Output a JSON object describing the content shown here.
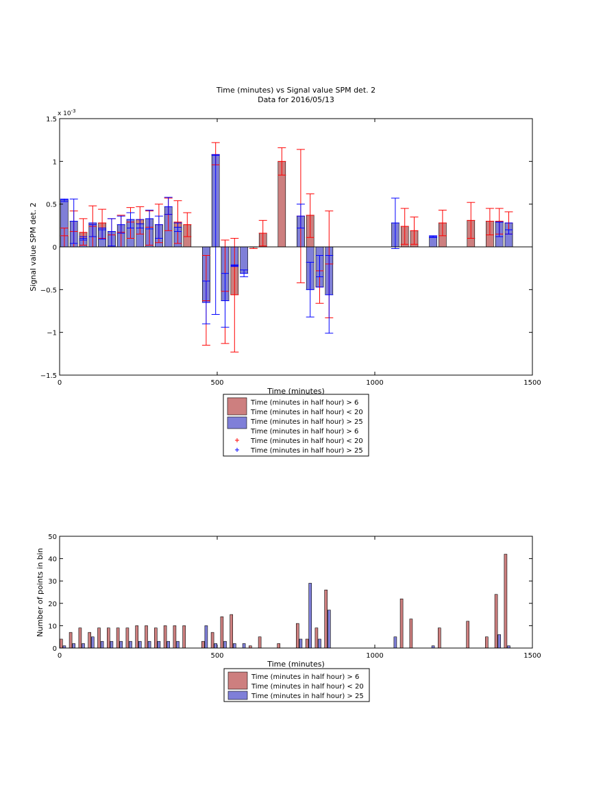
{
  "chart_data": [
    {
      "type": "bar",
      "title": "Time (minutes) vs Signal value SPM det. 2",
      "subtitle": "Data for 2016/05/13",
      "xlabel": "Time (minutes)",
      "ylabel": "Signal value SPM det. 2",
      "exponent_label": "x 10",
      "exponent_power": "-3",
      "xlim": [
        0,
        1500
      ],
      "ylim": [
        -1.5,
        1.5
      ],
      "x_ticks": [
        0,
        500,
        1000,
        1500
      ],
      "y_ticks": [
        -1.5,
        -1,
        -0.5,
        0,
        0.5,
        1,
        1.5
      ],
      "y_tick_labels": [
        "−1.5",
        "−1",
        "−0.5",
        "0",
        "0.5",
        "1",
        "1.5"
      ],
      "grid": false,
      "legend_placement": "bottom-center-outside",
      "legend": [
        {
          "kind": "patch",
          "color": "#cd7f7f",
          "label": "Time (minutes in half hour) > 6"
        },
        {
          "kind": "patch",
          "color": "#cd7f7f",
          "label": "Time (minutes in half hour) < 20"
        },
        {
          "kind": "patch",
          "color": "#7f7fd8",
          "label": "Time (minutes in half hour) > 25"
        },
        {
          "kind": "none",
          "color": "#ff0000",
          "label": "Time (minutes in half hour) > 6"
        },
        {
          "kind": "plus",
          "color": "#ff0000",
          "label": "Time (minutes in half hour) < 20"
        },
        {
          "kind": "plus",
          "color": "#0000ff",
          "label": "Time (minutes in half hour) > 25"
        }
      ],
      "series": [
        {
          "color": "#cd7f7f",
          "error_color": "#ff0000",
          "points": [
            {
              "x": 15,
              "y": 0.13,
              "lo": 0.0,
              "hi": 0.22
            },
            {
              "x": 45,
              "y": 0.18,
              "lo": 0.0,
              "hi": 0.42
            },
            {
              "x": 75,
              "y": 0.17,
              "lo": 0.02,
              "hi": 0.33
            },
            {
              "x": 105,
              "y": 0.24,
              "lo": 0.0,
              "hi": 0.48
            },
            {
              "x": 135,
              "y": 0.28,
              "lo": 0.1,
              "hi": 0.44
            },
            {
              "x": 165,
              "y": 0.14,
              "lo": 0.0,
              "hi": 0.33
            },
            {
              "x": 195,
              "y": 0.17,
              "lo": 0.0,
              "hi": 0.37
            },
            {
              "x": 225,
              "y": 0.29,
              "lo": 0.1,
              "hi": 0.46
            },
            {
              "x": 255,
              "y": 0.32,
              "lo": 0.15,
              "hi": 0.47
            },
            {
              "x": 285,
              "y": 0.23,
              "lo": 0.02,
              "hi": 0.42
            },
            {
              "x": 315,
              "y": 0.26,
              "lo": 0.05,
              "hi": 0.5
            },
            {
              "x": 345,
              "y": 0.38,
              "lo": 0.19,
              "hi": 0.57
            },
            {
              "x": 375,
              "y": 0.29,
              "lo": 0.04,
              "hi": 0.54
            },
            {
              "x": 405,
              "y": 0.26,
              "lo": 0.12,
              "hi": 0.4
            },
            {
              "x": 465,
              "y": -0.63,
              "lo": -1.15,
              "hi": -0.1
            },
            {
              "x": 495,
              "y": 1.08,
              "lo": 0.96,
              "hi": 1.22
            },
            {
              "x": 525,
              "y": -0.52,
              "lo": -1.13,
              "hi": 0.08
            },
            {
              "x": 555,
              "y": -0.56,
              "lo": -1.23,
              "hi": 0.1
            },
            {
              "x": 615,
              "y": 0.0,
              "lo": -0.02,
              "hi": 0.0
            },
            {
              "x": 645,
              "y": 0.16,
              "lo": 0.01,
              "hi": 0.31
            },
            {
              "x": 705,
              "y": 1.0,
              "lo": 0.84,
              "hi": 1.16
            },
            {
              "x": 765,
              "y": 0.36,
              "lo": -0.42,
              "hi": 1.14
            },
            {
              "x": 795,
              "y": 0.37,
              "lo": 0.11,
              "hi": 0.62
            },
            {
              "x": 825,
              "y": -0.47,
              "lo": -0.66,
              "hi": -0.28
            },
            {
              "x": 855,
              "y": -0.2,
              "lo": -0.83,
              "hi": 0.42
            },
            {
              "x": 1095,
              "y": 0.24,
              "lo": 0.03,
              "hi": 0.45
            },
            {
              "x": 1125,
              "y": 0.19,
              "lo": 0.03,
              "hi": 0.35
            },
            {
              "x": 1215,
              "y": 0.28,
              "lo": 0.13,
              "hi": 0.43
            },
            {
              "x": 1305,
              "y": 0.31,
              "lo": 0.1,
              "hi": 0.52
            },
            {
              "x": 1365,
              "y": 0.3,
              "lo": 0.14,
              "hi": 0.45
            },
            {
              "x": 1395,
              "y": 0.3,
              "lo": 0.15,
              "hi": 0.45
            },
            {
              "x": 1425,
              "y": 0.28,
              "lo": 0.15,
              "hi": 0.41
            }
          ]
        },
        {
          "color": "#7f7fd8",
          "error_color": "#0000ff",
          "points": [
            {
              "x": 15,
              "y": 0.55,
              "lo": 0.53,
              "hi": 0.56
            },
            {
              "x": 45,
              "y": 0.3,
              "lo": 0.04,
              "hi": 0.56
            },
            {
              "x": 75,
              "y": 0.1,
              "lo": 0.08,
              "hi": 0.12
            },
            {
              "x": 105,
              "y": 0.28,
              "lo": 0.12,
              "hi": 0.26
            },
            {
              "x": 135,
              "y": 0.22,
              "lo": 0.09,
              "hi": 0.2
            },
            {
              "x": 165,
              "y": 0.18,
              "lo": 0.01,
              "hi": 0.33
            },
            {
              "x": 195,
              "y": 0.26,
              "lo": 0.16,
              "hi": 0.36
            },
            {
              "x": 225,
              "y": 0.32,
              "lo": 0.22,
              "hi": 0.4
            },
            {
              "x": 255,
              "y": 0.27,
              "lo": 0.22,
              "hi": 0.32
            },
            {
              "x": 285,
              "y": 0.33,
              "lo": 0.21,
              "hi": 0.43
            },
            {
              "x": 315,
              "y": 0.26,
              "lo": 0.1,
              "hi": 0.36
            },
            {
              "x": 345,
              "y": 0.47,
              "lo": 0.38,
              "hi": 0.58
            },
            {
              "x": 375,
              "y": 0.23,
              "lo": 0.18,
              "hi": 0.28
            },
            {
              "x": 465,
              "y": -0.65,
              "lo": -0.9,
              "hi": -0.4
            },
            {
              "x": 495,
              "y": 1.08,
              "lo": -0.79,
              "hi": 1.07
            },
            {
              "x": 525,
              "y": -0.63,
              "lo": -0.94,
              "hi": -0.31
            },
            {
              "x": 555,
              "y": -0.22,
              "lo": -0.23,
              "hi": -0.21
            },
            {
              "x": 585,
              "y": -0.31,
              "lo": -0.35,
              "hi": -0.27
            },
            {
              "x": 765,
              "y": 0.36,
              "lo": 0.22,
              "hi": 0.5
            },
            {
              "x": 795,
              "y": -0.5,
              "lo": -0.82,
              "hi": -0.18
            },
            {
              "x": 825,
              "y": -0.47,
              "lo": -0.35,
              "hi": -0.1
            },
            {
              "x": 855,
              "y": -0.56,
              "lo": -1.01,
              "hi": -0.1
            },
            {
              "x": 1065,
              "y": 0.28,
              "lo": -0.02,
              "hi": 0.57
            },
            {
              "x": 1185,
              "y": 0.12,
              "lo": 0.11,
              "hi": 0.13
            },
            {
              "x": 1395,
              "y": 0.29,
              "lo": 0.12,
              "hi": 0.29
            },
            {
              "x": 1425,
              "y": 0.28,
              "lo": 0.15,
              "hi": 0.2
            }
          ]
        }
      ]
    },
    {
      "type": "bar",
      "xlabel": "Time (minutes)",
      "ylabel": "Number of points in bin",
      "xlim": [
        0,
        1500
      ],
      "ylim": [
        0,
        50
      ],
      "x_ticks": [
        0,
        500,
        1000,
        1500
      ],
      "y_ticks": [
        0,
        10,
        20,
        30,
        40,
        50
      ],
      "grid": false,
      "legend_placement": "bottom-center-outside",
      "legend": [
        {
          "kind": "patch",
          "color": "#cd7f7f",
          "label": "Time (minutes in half hour) > 6"
        },
        {
          "kind": "patch",
          "color": "#cd7f7f",
          "label": "Time (minutes in half hour) < 20"
        },
        {
          "kind": "patch",
          "color": "#7f7fd8",
          "label": "Time (minutes in half hour) > 25"
        }
      ],
      "series": [
        {
          "color": "#cd7f7f",
          "points": [
            {
              "x": 5,
              "y": 4
            },
            {
              "x": 35,
              "y": 7
            },
            {
              "x": 65,
              "y": 9
            },
            {
              "x": 95,
              "y": 7
            },
            {
              "x": 125,
              "y": 9
            },
            {
              "x": 155,
              "y": 9
            },
            {
              "x": 185,
              "y": 9
            },
            {
              "x": 215,
              "y": 9
            },
            {
              "x": 245,
              "y": 10
            },
            {
              "x": 275,
              "y": 10
            },
            {
              "x": 305,
              "y": 9
            },
            {
              "x": 335,
              "y": 10
            },
            {
              "x": 365,
              "y": 10
            },
            {
              "x": 395,
              "y": 10
            },
            {
              "x": 455,
              "y": 3
            },
            {
              "x": 485,
              "y": 7
            },
            {
              "x": 515,
              "y": 14
            },
            {
              "x": 545,
              "y": 15
            },
            {
              "x": 605,
              "y": 1
            },
            {
              "x": 635,
              "y": 5
            },
            {
              "x": 695,
              "y": 2
            },
            {
              "x": 755,
              "y": 11
            },
            {
              "x": 785,
              "y": 4
            },
            {
              "x": 815,
              "y": 9
            },
            {
              "x": 845,
              "y": 26
            },
            {
              "x": 1085,
              "y": 22
            },
            {
              "x": 1115,
              "y": 13
            },
            {
              "x": 1205,
              "y": 9
            },
            {
              "x": 1295,
              "y": 12
            },
            {
              "x": 1355,
              "y": 5
            },
            {
              "x": 1385,
              "y": 24
            },
            {
              "x": 1415,
              "y": 42
            }
          ]
        },
        {
          "color": "#7f7fd8",
          "points": [
            {
              "x": 15,
              "y": 1
            },
            {
              "x": 45,
              "y": 2
            },
            {
              "x": 75,
              "y": 2
            },
            {
              "x": 105,
              "y": 5
            },
            {
              "x": 135,
              "y": 3
            },
            {
              "x": 165,
              "y": 3
            },
            {
              "x": 195,
              "y": 3
            },
            {
              "x": 225,
              "y": 3
            },
            {
              "x": 255,
              "y": 3
            },
            {
              "x": 285,
              "y": 3
            },
            {
              "x": 315,
              "y": 3
            },
            {
              "x": 345,
              "y": 3
            },
            {
              "x": 375,
              "y": 3
            },
            {
              "x": 465,
              "y": 10
            },
            {
              "x": 495,
              "y": 2
            },
            {
              "x": 525,
              "y": 3
            },
            {
              "x": 555,
              "y": 2
            },
            {
              "x": 585,
              "y": 2
            },
            {
              "x": 765,
              "y": 4
            },
            {
              "x": 795,
              "y": 29
            },
            {
              "x": 825,
              "y": 4
            },
            {
              "x": 855,
              "y": 17
            },
            {
              "x": 1065,
              "y": 5
            },
            {
              "x": 1185,
              "y": 1
            },
            {
              "x": 1395,
              "y": 6
            },
            {
              "x": 1425,
              "y": 1
            }
          ]
        }
      ]
    }
  ]
}
